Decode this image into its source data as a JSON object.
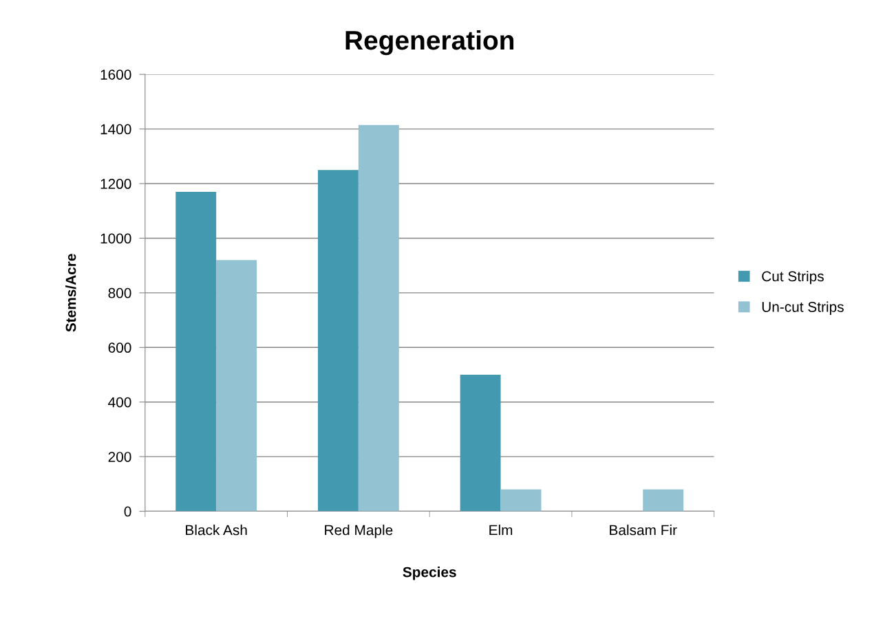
{
  "chart_data": {
    "type": "bar",
    "title": "Regeneration",
    "xlabel": "Species",
    "ylabel": "Stems/Acre",
    "categories": [
      "Black Ash",
      "Red Maple",
      "Elm",
      "Balsam Fir"
    ],
    "series": [
      {
        "name": "Cut Strips",
        "color": "#4399b0",
        "values": [
          1170,
          1250,
          500,
          0
        ]
      },
      {
        "name": "Un-cut Strips",
        "color": "#93c3d3",
        "values": [
          920,
          1415,
          80,
          80
        ]
      }
    ],
    "ylim": [
      0,
      1600
    ],
    "yticks": [
      0,
      200,
      400,
      600,
      800,
      1000,
      1200,
      1400,
      1600
    ],
    "grid": "y",
    "legend": "right"
  }
}
